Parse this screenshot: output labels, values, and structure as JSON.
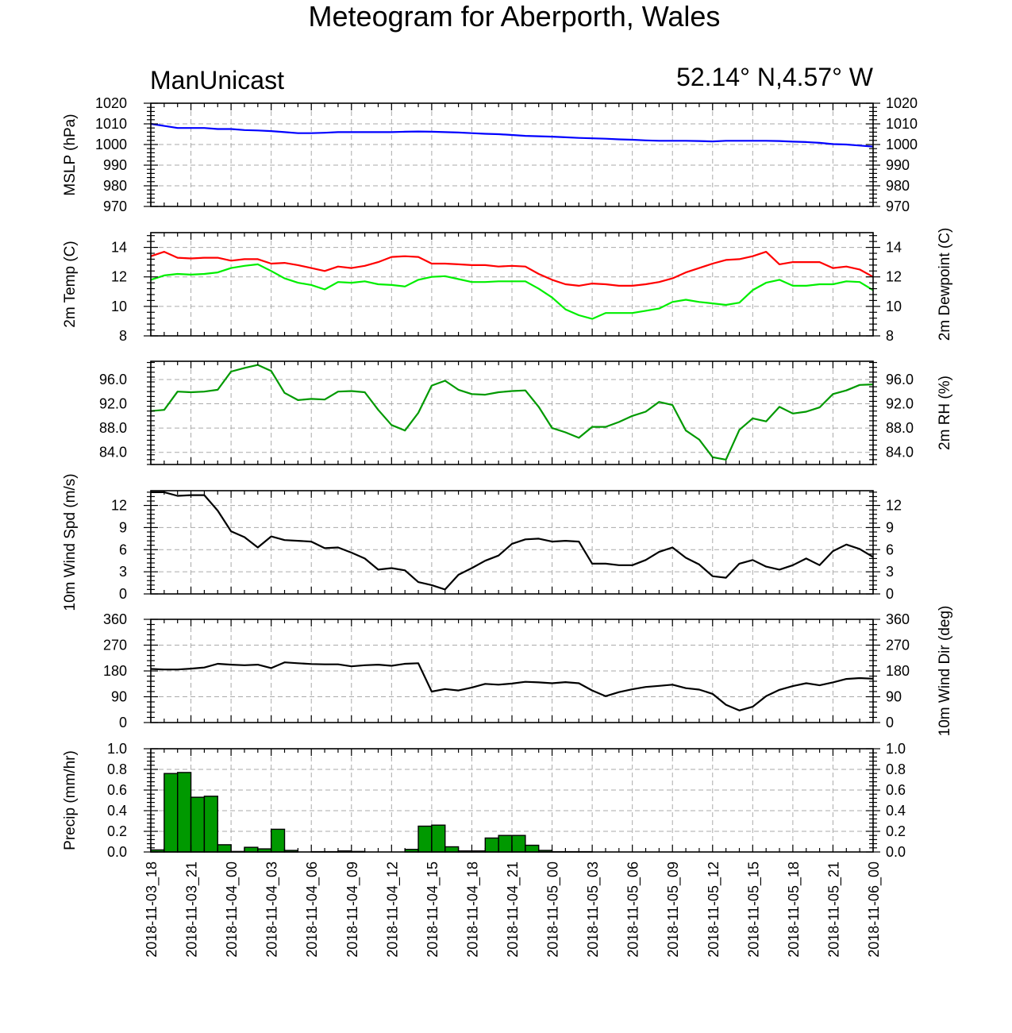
{
  "title": "Meteogram for Aberporth, Wales",
  "model": "ManUnicast",
  "location": "52.14° N,4.57° W",
  "colors": {
    "mslp": "#0000ff",
    "temp": "#ff0000",
    "dewpoint": "#00ee00",
    "rh": "#009900",
    "black": "#000000",
    "precip_fill": "#009900"
  },
  "x_ticks": [
    "2018-11-03_18",
    "2018-11-03_21",
    "2018-11-04_00",
    "2018-11-04_03",
    "2018-11-04_06",
    "2018-11-04_09",
    "2018-11-04_12",
    "2018-11-04_15",
    "2018-11-04_18",
    "2018-11-04_21",
    "2018-11-05_00",
    "2018-11-05_03",
    "2018-11-05_06",
    "2018-11-05_09",
    "2018-11-05_12",
    "2018-11-05_15",
    "2018-11-05_18",
    "2018-11-05_21",
    "2018-11-06_00"
  ],
  "chart_data": [
    {
      "type": "line",
      "ylabel": "MSLP (hPa)",
      "ylabel_right": "",
      "ylim": [
        970,
        1020
      ],
      "yticks": [
        970,
        980,
        990,
        1000,
        1010,
        1020
      ],
      "grid": true,
      "x_hours": [
        0,
        1,
        2,
        3,
        4,
        5,
        6,
        7,
        8,
        9,
        10,
        11,
        12,
        13,
        14,
        15,
        16,
        17,
        18,
        19,
        20,
        21,
        22,
        23,
        24,
        25,
        26,
        27,
        28,
        29,
        30,
        31,
        32,
        33,
        34,
        35,
        36,
        37,
        38,
        39,
        40,
        41,
        42,
        43,
        44,
        45,
        46,
        47,
        48,
        49,
        50,
        51,
        52,
        53,
        54
      ],
      "series": [
        {
          "color": "#0000ff",
          "values": [
            1010,
            1009,
            1008,
            1008,
            1008,
            1007.5,
            1007.5,
            1007,
            1006.8,
            1006.5,
            1006,
            1005.5,
            1005.5,
            1005.7,
            1006,
            1006,
            1006,
            1006,
            1006,
            1006.2,
            1006.3,
            1006.2,
            1006,
            1005.8,
            1005.5,
            1005.2,
            1005,
            1004.6,
            1004.2,
            1004,
            1003.8,
            1003.5,
            1003.2,
            1003,
            1002.8,
            1002.5,
            1002.3,
            1002,
            1001.8,
            1001.8,
            1001.8,
            1001.7,
            1001.5,
            1001.8,
            1001.8,
            1001.8,
            1001.8,
            1001.7,
            1001.4,
            1001.2,
            1000.8,
            1000.2,
            1000,
            999.5,
            999
          ]
        }
      ]
    },
    {
      "type": "line",
      "ylabel": "2m Temp (C)",
      "ylabel_right": "2m Dewpoint (C)",
      "ylim": [
        8,
        15
      ],
      "yticks": [
        8,
        10,
        12,
        14
      ],
      "grid": true,
      "x_hours": [
        0,
        1,
        2,
        3,
        4,
        5,
        6,
        7,
        8,
        9,
        10,
        11,
        12,
        13,
        14,
        15,
        16,
        17,
        18,
        19,
        20,
        21,
        22,
        23,
        24,
        25,
        26,
        27,
        28,
        29,
        30,
        31,
        32,
        33,
        34,
        35,
        36,
        37,
        38,
        39,
        40,
        41,
        42,
        43,
        44,
        45,
        46,
        47,
        48,
        49,
        50,
        51,
        52,
        53,
        54
      ],
      "series": [
        {
          "color": "#ff0000",
          "values": [
            13.4,
            13.7,
            13.3,
            13.25,
            13.3,
            13.3,
            13.1,
            13.2,
            13.2,
            12.9,
            12.95,
            12.8,
            12.6,
            12.4,
            12.7,
            12.6,
            12.75,
            13,
            13.35,
            13.4,
            13.35,
            12.9,
            12.9,
            12.85,
            12.8,
            12.8,
            12.7,
            12.75,
            12.7,
            12.2,
            11.8,
            11.5,
            11.4,
            11.55,
            11.5,
            11.4,
            11.4,
            11.5,
            11.65,
            11.9,
            12.3,
            12.6,
            12.9,
            13.15,
            13.2,
            13.4,
            13.7,
            12.85,
            13,
            13,
            13,
            12.6,
            12.7,
            12.5,
            12
          ]
        },
        {
          "color": "#00ee00",
          "values": [
            11.8,
            12.1,
            12.2,
            12.15,
            12.2,
            12.3,
            12.6,
            12.75,
            12.85,
            12.4,
            11.9,
            11.6,
            11.45,
            11.15,
            11.65,
            11.6,
            11.7,
            11.5,
            11.45,
            11.35,
            11.8,
            12,
            12.05,
            11.85,
            11.65,
            11.65,
            11.7,
            11.7,
            11.7,
            11.2,
            10.6,
            9.8,
            9.4,
            9.15,
            9.55,
            9.55,
            9.55,
            9.7,
            9.85,
            10.3,
            10.45,
            10.3,
            10.2,
            10.1,
            10.25,
            11.1,
            11.6,
            11.8,
            11.4,
            11.4,
            11.5,
            11.5,
            11.7,
            11.65,
            11.1
          ]
        }
      ]
    },
    {
      "type": "line",
      "ylabel": "",
      "ylabel_right": "2m RH (%)",
      "ylim": [
        82,
        99
      ],
      "yticks": [
        84,
        88,
        92,
        96
      ],
      "ytick_labels": [
        "84.0",
        "88.0",
        "92.0",
        "96.0"
      ],
      "grid": true,
      "x_hours": [
        0,
        1,
        2,
        3,
        4,
        5,
        6,
        7,
        8,
        9,
        10,
        11,
        12,
        13,
        14,
        15,
        16,
        17,
        18,
        19,
        20,
        21,
        22,
        23,
        24,
        25,
        26,
        27,
        28,
        29,
        30,
        31,
        32,
        33,
        34,
        35,
        36,
        37,
        38,
        39,
        40,
        41,
        42,
        43,
        44,
        45,
        46,
        47,
        48,
        49,
        50,
        51,
        52,
        53,
        54
      ],
      "series": [
        {
          "color": "#009900",
          "values": [
            90.8,
            91,
            94,
            93.9,
            94,
            94.3,
            97.3,
            97.9,
            98.4,
            97.4,
            93.8,
            92.6,
            92.8,
            92.7,
            94,
            94.1,
            93.9,
            91,
            88.5,
            87.6,
            90.5,
            95,
            95.8,
            94.3,
            93.6,
            93.5,
            93.9,
            94.1,
            94.2,
            91.5,
            88,
            87.3,
            86.4,
            88.2,
            88.2,
            89,
            90,
            90.7,
            92.3,
            91.8,
            87.6,
            86.1,
            83.2,
            82.8,
            87.7,
            89.6,
            89.1,
            91.5,
            90.4,
            90.7,
            91.4,
            93.6,
            94.2,
            95.1,
            95.2
          ]
        }
      ]
    },
    {
      "type": "line",
      "ylabel": "10m Wind Spd (m/s)",
      "ylabel_right": "",
      "ylim": [
        0,
        14
      ],
      "yticks": [
        0,
        3,
        6,
        9,
        12
      ],
      "grid": true,
      "x_hours": [
        0,
        1,
        2,
        3,
        4,
        5,
        6,
        7,
        8,
        9,
        10,
        11,
        12,
        13,
        14,
        15,
        16,
        17,
        18,
        19,
        20,
        21,
        22,
        23,
        24,
        25,
        26,
        27,
        28,
        29,
        30,
        31,
        32,
        33,
        34,
        35,
        36,
        37,
        38,
        39,
        40,
        41,
        42,
        43,
        44,
        45,
        46,
        47,
        48,
        49,
        50,
        51,
        52,
        53,
        54
      ],
      "series": [
        {
          "color": "#000000",
          "values": [
            13.8,
            13.8,
            13.3,
            13.4,
            13.4,
            11.3,
            8.5,
            7.7,
            6.3,
            7.8,
            7.3,
            7.2,
            7.1,
            6.2,
            6.3,
            5.6,
            4.8,
            3.3,
            3.5,
            3.2,
            1.6,
            1.2,
            0.6,
            2.6,
            3.5,
            4.5,
            5.2,
            6.8,
            7.4,
            7.5,
            7.1,
            7.2,
            7.1,
            4.1,
            4.1,
            3.9,
            3.9,
            4.6,
            5.7,
            6.3,
            4.9,
            4,
            2.4,
            2.2,
            4.1,
            4.6,
            3.7,
            3.3,
            3.9,
            4.8,
            3.9,
            5.8,
            6.7,
            6.1,
            5
          ]
        }
      ]
    },
    {
      "type": "line",
      "ylabel": "",
      "ylabel_right": "10m Wind Dir (deg)",
      "ylim": [
        0,
        360
      ],
      "yticks": [
        0,
        90,
        180,
        270,
        360
      ],
      "grid": true,
      "x_hours": [
        0,
        1,
        2,
        3,
        4,
        5,
        6,
        7,
        8,
        9,
        10,
        11,
        12,
        13,
        14,
        15,
        16,
        17,
        18,
        19,
        20,
        21,
        22,
        23,
        24,
        25,
        26,
        27,
        28,
        29,
        30,
        31,
        32,
        33,
        34,
        35,
        36,
        37,
        38,
        39,
        40,
        41,
        42,
        43,
        44,
        45,
        46,
        47,
        48,
        49,
        50,
        51,
        52,
        53,
        54
      ],
      "series": [
        {
          "color": "#000000",
          "values": [
            187,
            185,
            185,
            188,
            192,
            205,
            202,
            200,
            202,
            190,
            210,
            207,
            204,
            203,
            203,
            196,
            200,
            202,
            198,
            205,
            207,
            108,
            117,
            112,
            122,
            135,
            132,
            136,
            142,
            140,
            137,
            141,
            137,
            112,
            92,
            106,
            116,
            124,
            128,
            132,
            120,
            115,
            100,
            62,
            42,
            55,
            92,
            114,
            127,
            137,
            130,
            140,
            152,
            155,
            153
          ]
        }
      ]
    },
    {
      "type": "bar",
      "ylabel": "Precip (mm/hr)",
      "ylabel_right": "",
      "ylim": [
        0,
        1
      ],
      "yticks": [
        0,
        0.2,
        0.4,
        0.6,
        0.8,
        1.0
      ],
      "ytick_labels": [
        "0.0",
        "0.2",
        "0.4",
        "0.6",
        "0.8",
        "1.0"
      ],
      "grid": true,
      "bar_start_hours": [
        0,
        1,
        2,
        3,
        4,
        5,
        6,
        7,
        8,
        9,
        10,
        11,
        12,
        13,
        14,
        15,
        16,
        17,
        18,
        19,
        20,
        21,
        22,
        23,
        24,
        25,
        26,
        27,
        28,
        29,
        30,
        31,
        32,
        33,
        34,
        35,
        36,
        37,
        38,
        39,
        40,
        41,
        42,
        43,
        44,
        45,
        46,
        47,
        48,
        49,
        50,
        51,
        52,
        53
      ],
      "values": [
        0.02,
        0.76,
        0.77,
        0.53,
        0.54,
        0.07,
        0.005,
        0.045,
        0.03,
        0.22,
        0.015,
        0,
        0.003,
        0.003,
        0.01,
        0.005,
        0,
        0,
        0,
        0.025,
        0.25,
        0.26,
        0.05,
        0.01,
        0.01,
        0.135,
        0.16,
        0.16,
        0.065,
        0.015,
        0.003,
        0.003,
        0.003,
        0,
        0,
        0,
        0,
        0,
        0,
        0,
        0,
        0,
        0,
        0,
        0,
        0,
        0,
        0,
        0,
        0,
        0,
        0,
        0,
        0
      ]
    }
  ]
}
